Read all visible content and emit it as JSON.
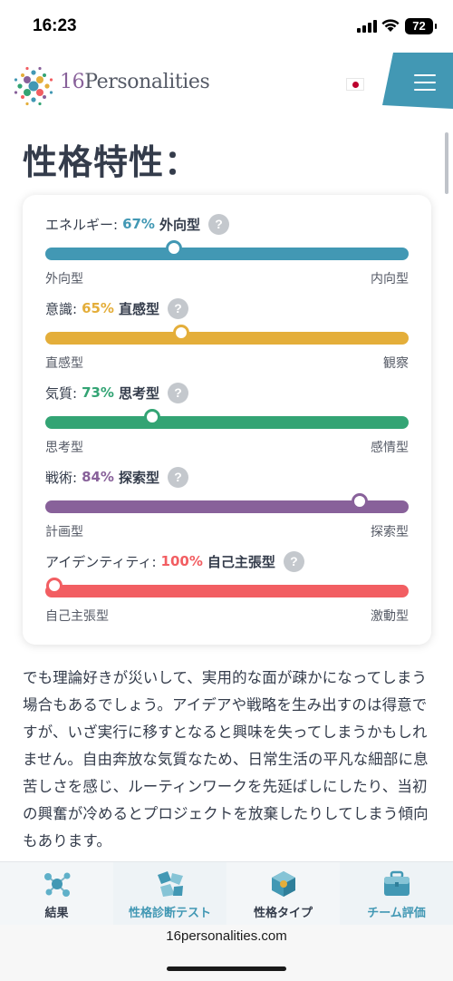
{
  "status_bar": {
    "time": "16:23",
    "battery": "72"
  },
  "header": {
    "brand_number": "16",
    "brand_name": "Personalities",
    "flag": "japan-flag-icon",
    "menu_icon": "hamburger-menu-icon"
  },
  "page_title": "性格特性：",
  "colors": {
    "energy": "#4298b4",
    "mind": "#e4ae3a",
    "nature": "#33a474",
    "tactics": "#88619a",
    "identity": "#f25e62",
    "menu_bg": "#4298b4"
  },
  "traits": [
    {
      "name": "エネルギー:",
      "percent": "67%",
      "result": "外向型",
      "left_label": "外向型",
      "right_label": "内向型",
      "marker_position": 0.355,
      "color": "#4298b4"
    },
    {
      "name": "意識:",
      "percent": "65%",
      "result": "直感型",
      "left_label": "直感型",
      "right_label": "観察",
      "marker_position": 0.375,
      "color": "#e4ae3a"
    },
    {
      "name": "気質:",
      "percent": "73%",
      "result": "思考型",
      "left_label": "思考型",
      "right_label": "感情型",
      "marker_position": 0.295,
      "color": "#33a474"
    },
    {
      "name": "戦術:",
      "percent": "84%",
      "result": "探索型",
      "left_label": "計画型",
      "right_label": "探索型",
      "marker_position": 0.865,
      "color": "#88619a"
    },
    {
      "name": "アイデンティティ:",
      "percent": "100%",
      "result": "自己主張型",
      "left_label": "自己主張型",
      "right_label": "激動型",
      "marker_position": 0.025,
      "color": "#f25e62"
    }
  ],
  "body_text": "でも理論好きが災いして、実用的な面が疎かになってしまう場合もあるでしょう。アイデアや戦略を生み出すのは得意ですが、いざ実行に移すとなると興味を失ってしまうかもしれません。自由奔放な気質なため、日常生活の平凡な細部に息苦しさを感じ、ルーティンワークを先延ばしにしたり、当初の興奮が冷めるとプロジェクトを放棄したりしてしまう傾向もあります。",
  "tabs": [
    {
      "label": "結果",
      "icon": "results-molecule-icon",
      "color": "#343c4b"
    },
    {
      "label": "性格診断テスト",
      "icon": "test-shapes-icon",
      "color": "#4298b4"
    },
    {
      "label": "性格タイプ",
      "icon": "types-cube-icon",
      "color": "#343c4b"
    },
    {
      "label": "チーム評価",
      "icon": "team-briefcase-icon",
      "color": "#4298b4"
    }
  ],
  "browser": {
    "url": "16personalities.com"
  }
}
